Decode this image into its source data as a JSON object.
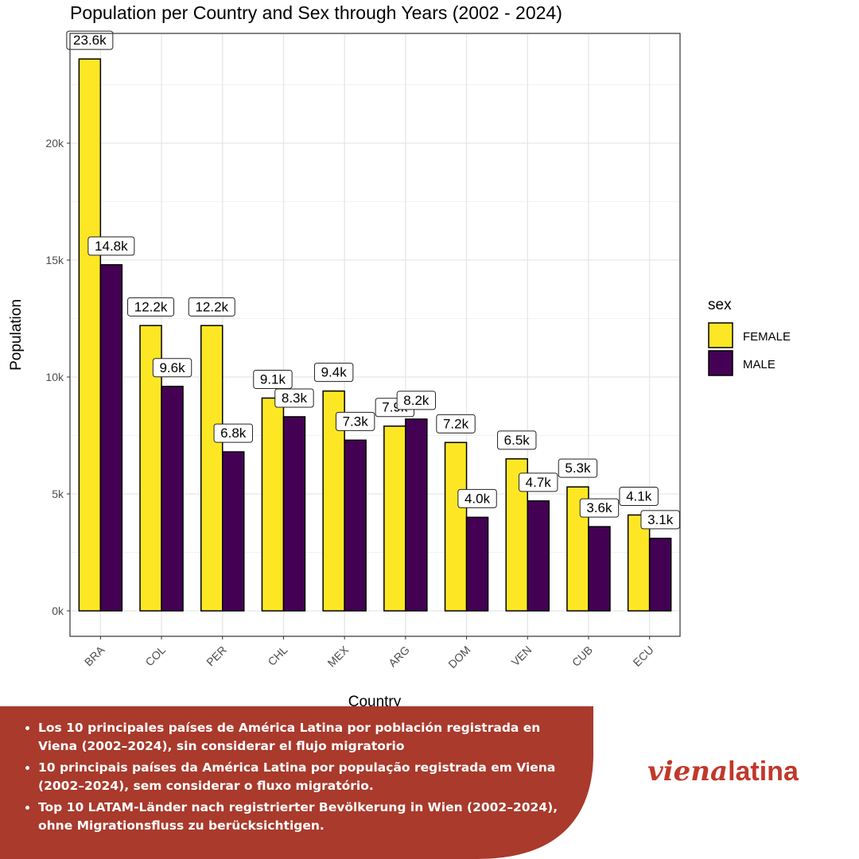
{
  "chart_data": {
    "type": "bar",
    "title": "Population per Country and Sex through Years (2002 - 2024)",
    "xlabel": "Country",
    "ylabel": "Population",
    "categories": [
      "BRA",
      "COL",
      "PER",
      "CHL",
      "MEX",
      "ARG",
      "DOM",
      "VEN",
      "CUB",
      "ECU"
    ],
    "series": [
      {
        "name": "FEMALE",
        "color": "#fde725",
        "values": [
          23600,
          12200,
          12200,
          9100,
          9400,
          7900,
          7200,
          6500,
          5300,
          4100
        ],
        "labels": [
          "23.6k",
          "12.2k",
          "12.2k",
          "9.1k",
          "9.4k",
          "7.9k",
          "7.2k",
          "6.5k",
          "5.3k",
          "4.1k"
        ]
      },
      {
        "name": "MALE",
        "color": "#440154",
        "values": [
          14800,
          9600,
          6800,
          8300,
          7300,
          8200,
          4000,
          4700,
          3600,
          3100
        ],
        "labels": [
          "14.8k",
          "9.6k",
          "6.8k",
          "8.3k",
          "7.3k",
          "8.2k",
          "4.0k",
          "4.7k",
          "3.6k",
          "3.1k"
        ]
      }
    ],
    "ylim": [
      -1100,
      24500
    ],
    "yticks": [
      0,
      5000,
      10000,
      15000,
      20000
    ],
    "ytick_labels": [
      "0k",
      "5k",
      "10k",
      "15k",
      "20k"
    ],
    "grid": true,
    "legend": {
      "title": "sex",
      "placement": "right"
    }
  },
  "banner": {
    "color": "#a93a2c",
    "bullets": [
      "Los 10 principales países de América Latina por población registrada en Viena (2002–2024), sin considerar el flujo migratorio",
      "10 principais países da América Latina por população registrada em Viena (2002–2024), sem considerar o fluxo migratório.",
      "Top 10 LATAM-Länder nach registrierter Bevölkerung in Wien (2002–2024), ohne Migrationsfluss zu berücksichtigen."
    ]
  },
  "logo": {
    "script": "viena",
    "plain": "latina"
  }
}
